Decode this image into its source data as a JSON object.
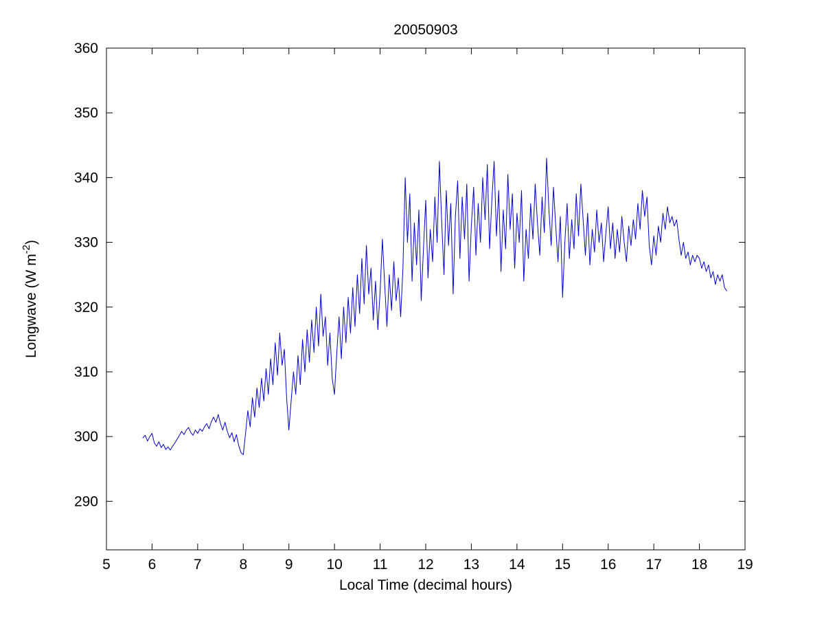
{
  "figure": {
    "background": "#ffffff"
  },
  "chart_data": {
    "type": "line",
    "title": "20050903",
    "xlabel": "Local Time (decimal hours)",
    "ylabel": "Longwave (W m^-2)",
    "ylabel_parts": {
      "pre": "Longwave (W m",
      "sup": "-2",
      "post": ")"
    },
    "xlim": [
      5,
      19
    ],
    "ylim": [
      282.5,
      360
    ],
    "xticks": [
      5,
      6,
      7,
      8,
      9,
      10,
      11,
      12,
      13,
      14,
      15,
      16,
      17,
      18,
      19
    ],
    "yticks": [
      290,
      300,
      310,
      320,
      330,
      340,
      350,
      360
    ],
    "grid": false,
    "line_color": "#0000CC",
    "line_width": 1,
    "series": [
      {
        "name": "longwave",
        "x_start": 5.8,
        "x_step": 0.05,
        "values": [
          299.8,
          300.2,
          299.3,
          300.0,
          300.5,
          299.0,
          298.5,
          299.2,
          298.3,
          298.8,
          298.0,
          298.4,
          297.9,
          298.5,
          299.0,
          299.6,
          300.2,
          300.8,
          300.3,
          301.0,
          301.4,
          300.6,
          300.2,
          301.0,
          300.5,
          301.2,
          300.8,
          301.5,
          302.0,
          301.2,
          302.3,
          303.0,
          302.2,
          303.4,
          302.0,
          301.0,
          302.2,
          300.8,
          299.8,
          300.6,
          299.2,
          300.3,
          298.6,
          297.5,
          297.2,
          300.5,
          304.0,
          301.5,
          306.0,
          303.0,
          307.5,
          304.5,
          309.0,
          305.5,
          310.5,
          306.5,
          312.0,
          308.0,
          314.5,
          309.5,
          316.0,
          311.0,
          313.5,
          306.0,
          301.0,
          305.5,
          310.0,
          306.5,
          312.5,
          308.0,
          315.0,
          310.0,
          316.5,
          311.5,
          318.0,
          313.0,
          320.0,
          314.0,
          322.0,
          315.5,
          318.5,
          311.0,
          316.0,
          309.0,
          306.5,
          313.0,
          318.5,
          312.0,
          320.0,
          314.5,
          321.5,
          316.0,
          323.0,
          317.0,
          325.0,
          319.0,
          327.5,
          320.5,
          329.5,
          322.0,
          326.0,
          318.0,
          324.0,
          316.5,
          322.5,
          330.5,
          323.5,
          317.0,
          325.0,
          319.5,
          327.0,
          321.0,
          324.5,
          318.5,
          326.0,
          340.0,
          330.0,
          337.5,
          324.0,
          333.0,
          326.5,
          335.0,
          321.0,
          329.0,
          336.5,
          324.5,
          332.0,
          327.0,
          337.0,
          330.0,
          342.5,
          333.0,
          325.0,
          338.0,
          329.5,
          336.0,
          322.0,
          334.0,
          339.5,
          327.5,
          337.0,
          330.5,
          339.0,
          324.0,
          332.5,
          338.5,
          328.0,
          336.0,
          330.0,
          340.0,
          333.5,
          342.0,
          329.0,
          336.5,
          342.5,
          331.0,
          338.0,
          325.5,
          335.0,
          329.0,
          340.5,
          332.0,
          337.5,
          326.0,
          334.5,
          330.0,
          338.0,
          324.0,
          332.0,
          327.5,
          336.0,
          330.5,
          339.0,
          333.0,
          328.0,
          337.0,
          331.5,
          343.0,
          335.0,
          329.5,
          338.5,
          332.5,
          327.0,
          334.0,
          321.5,
          330.0,
          336.0,
          327.5,
          333.5,
          329.0,
          337.5,
          331.0,
          339.0,
          333.5,
          328.0,
          334.5,
          326.5,
          332.0,
          328.5,
          335.0,
          330.0,
          333.0,
          327.0,
          331.5,
          335.5,
          329.0,
          333.0,
          327.5,
          332.0,
          328.5,
          334.0,
          330.0,
          327.0,
          332.5,
          329.5,
          333.5,
          330.5,
          336.0,
          332.0,
          338.0,
          334.0,
          337.0,
          329.5,
          326.5,
          331.0,
          328.0,
          332.5,
          330.0,
          334.5,
          332.0,
          335.5,
          333.0,
          334.0,
          332.5,
          333.5,
          330.5,
          328.0,
          330.0,
          327.5,
          328.5,
          326.5,
          328.0,
          327.0,
          328.0,
          327.5,
          326.0,
          327.0,
          325.5,
          326.5,
          324.5,
          325.5,
          323.5,
          325.0,
          324.0,
          325.0,
          323.0,
          322.5
        ]
      }
    ]
  }
}
